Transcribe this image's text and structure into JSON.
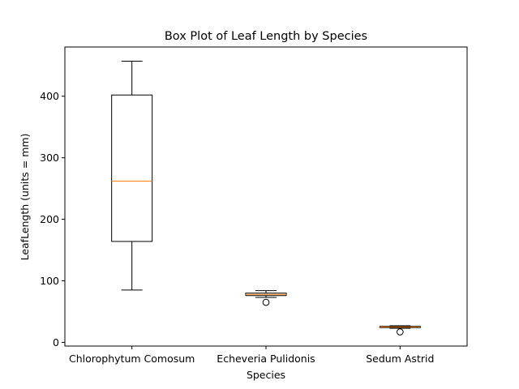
{
  "chart_data": {
    "type": "box",
    "title": "Box Plot of Leaf Length by Species",
    "xlabel": "Species",
    "ylabel": "LeafLength (units = mm)",
    "categories": [
      "Chlorophytum Comosum",
      "Echeveria Pulidonis",
      "Sedum Astrid"
    ],
    "y_ticks": [
      0,
      100,
      200,
      300,
      400
    ],
    "ylim": [
      -6,
      480
    ],
    "boxes": [
      {
        "name": "Chlorophytum Comosum",
        "whisker_low": 85,
        "q1": 164,
        "median": 262,
        "q3": 402,
        "whisker_high": 457,
        "outliers": []
      },
      {
        "name": "Echeveria Pulidonis",
        "whisker_low": 73,
        "q1": 76,
        "median": 78,
        "q3": 80,
        "whisker_high": 84,
        "outliers": [
          65
        ]
      },
      {
        "name": "Sedum Astrid",
        "whisker_low": 23,
        "q1": 24,
        "median": 25,
        "q3": 26,
        "whisker_high": 27,
        "outliers": [
          17
        ]
      }
    ],
    "grid": false,
    "legend": "none",
    "colors": {
      "box": "#000000",
      "median": "#ff7f0e",
      "outlier": "#000000"
    }
  }
}
